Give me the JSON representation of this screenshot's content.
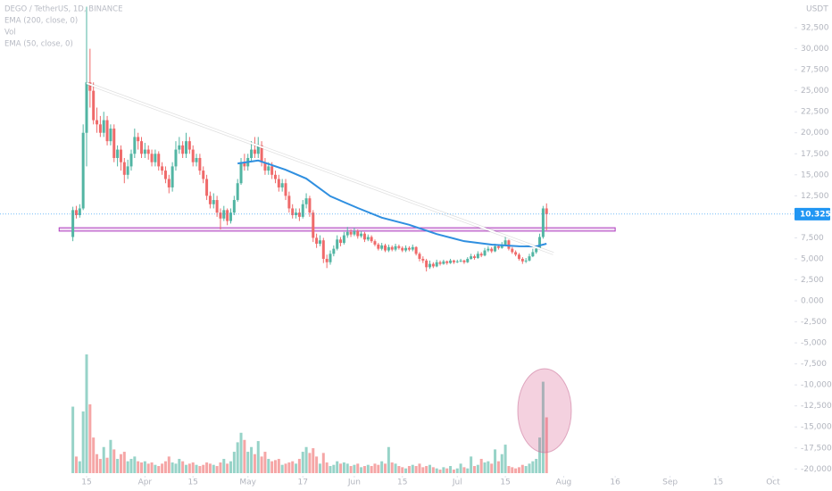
{
  "chart_data": {
    "type": "candlestick",
    "title": "DEGO / TetherUS, 1D, BINANCE",
    "indicators": [
      "EMA (200, close, 0)",
      "Vol",
      "EMA (50, close, 0)"
    ],
    "currency": "USDT",
    "up_color": "#52b5a3",
    "down_color": "#ef6a6a",
    "x": [
      "Mar 11",
      "Mar 12",
      "Mar 13",
      "Mar 14",
      "Mar 15",
      "Mar 16",
      "Mar 17",
      "Mar 18",
      "Mar 19",
      "Mar 20",
      "Mar 21",
      "Mar 22",
      "Mar 23",
      "Mar 24",
      "Mar 25",
      "Mar 26",
      "Mar 27",
      "Mar 28",
      "Mar 29",
      "Mar 30",
      "Mar 31",
      "Apr 1",
      "Apr 2",
      "Apr 3",
      "Apr 4",
      "Apr 5",
      "Apr 6",
      "Apr 7",
      "Apr 8",
      "Apr 9",
      "Apr 10",
      "Apr 11",
      "Apr 12",
      "Apr 13",
      "Apr 14",
      "Apr 15",
      "Apr 16",
      "Apr 17",
      "Apr 18",
      "Apr 19",
      "Apr 20",
      "Apr 21",
      "Apr 22",
      "Apr 23",
      "Apr 24",
      "Apr 25",
      "Apr 26",
      "Apr 27",
      "Apr 28",
      "Apr 29",
      "Apr 30",
      "May 1",
      "May 2",
      "May 3",
      "May 4",
      "May 5",
      "May 6",
      "May 7",
      "May 8",
      "May 9",
      "May 10",
      "May 11",
      "May 12",
      "May 13",
      "May 14",
      "May 15",
      "May 16",
      "May 17",
      "May 18",
      "May 19",
      "May 20",
      "May 21",
      "May 22",
      "May 23",
      "May 24",
      "May 25",
      "May 26",
      "May 27",
      "May 28",
      "May 29",
      "May 30",
      "May 31",
      "Jun 1",
      "Jun 2",
      "Jun 3",
      "Jun 4",
      "Jun 5",
      "Jun 6",
      "Jun 7",
      "Jun 8",
      "Jun 9",
      "Jun 10",
      "Jun 11",
      "Jun 12",
      "Jun 13",
      "Jun 14",
      "Jun 15",
      "Jun 16",
      "Jun 17",
      "Jun 18",
      "Jun 19",
      "Jun 20",
      "Jun 21",
      "Jun 22",
      "Jun 23",
      "Jun 24",
      "Jun 25",
      "Jun 26",
      "Jun 27",
      "Jun 28",
      "Jun 29",
      "Jun 30",
      "Jul 1",
      "Jul 2",
      "Jul 3",
      "Jul 4",
      "Jul 5",
      "Jul 6",
      "Jul 7",
      "Jul 8",
      "Jul 9",
      "Jul 10",
      "Jul 11",
      "Jul 12",
      "Jul 13",
      "Jul 14",
      "Jul 15",
      "Jul 16",
      "Jul 17",
      "Jul 18",
      "Jul 19",
      "Jul 20",
      "Jul 21",
      "Jul 22",
      "Jul 23",
      "Jul 24",
      "Jul 25",
      "Jul 26",
      "Jul 27"
    ],
    "open": [
      7600,
      10800,
      10200,
      11000,
      20000,
      26000,
      25000,
      21500,
      21000,
      20000,
      21500,
      19000,
      20500,
      17000,
      18000,
      16500,
      15000,
      16000,
      17500,
      19500,
      19000,
      17500,
      18000,
      17500,
      16500,
      17500,
      16000,
      15500,
      14500,
      13500,
      16000,
      18000,
      18500,
      17500,
      19000,
      18000,
      16500,
      17000,
      15500,
      14500,
      12500,
      11500,
      12000,
      10500,
      9800,
      10800,
      9500,
      10500,
      12000,
      14000,
      16500,
      16000,
      17000,
      18000,
      17500,
      18500,
      16500,
      15500,
      16000,
      15000,
      14500,
      13500,
      14000,
      12500,
      11000,
      10200,
      10500,
      10000,
      11500,
      12200,
      10500,
      7500,
      6800,
      7200,
      5000,
      4600,
      5600,
      6200,
      7300,
      6900,
      7800,
      8200,
      7900,
      8300,
      7700,
      8000,
      7300,
      7600,
      7100,
      6700,
      6200,
      6600,
      6000,
      6400,
      6100,
      6500,
      6300,
      6000,
      6300,
      6100,
      6400,
      5600,
      5000,
      4800,
      4000,
      4400,
      4100,
      4600,
      4400,
      4700,
      4500,
      4800,
      4600,
      4700,
      4800,
      4600,
      5000,
      5300,
      5100,
      5600,
      5400,
      6000,
      6200,
      5900,
      6500,
      6300,
      6700,
      7200,
      6200,
      5800,
      5500,
      5000,
      4700,
      4800,
      5300,
      5800,
      6200,
      7600,
      11000
    ],
    "high": [
      11200,
      11300,
      11500,
      21000,
      35000,
      30000,
      26000,
      23000,
      22000,
      22500,
      22000,
      21000,
      21000,
      18500,
      18500,
      17000,
      16800,
      18000,
      20500,
      20000,
      19500,
      18800,
      18500,
      18000,
      18000,
      17800,
      16500,
      16000,
      15000,
      16500,
      19000,
      19500,
      19000,
      20000,
      19500,
      18500,
      17500,
      17500,
      16000,
      15000,
      13000,
      12800,
      12500,
      11000,
      11300,
      11000,
      11000,
      12500,
      14500,
      17000,
      17500,
      17500,
      19000,
      19500,
      19500,
      19000,
      17000,
      16500,
      16500,
      15500,
      15000,
      14500,
      14500,
      13000,
      11500,
      11000,
      11000,
      12000,
      12800,
      12500,
      10800,
      8000,
      7800,
      7500,
      5500,
      6000,
      6600,
      7800,
      7600,
      8200,
      8800,
      8500,
      8700,
      8500,
      8300,
      8200,
      7900,
      7800,
      7300,
      6900,
      6900,
      6800,
      6700,
      6600,
      6800,
      6700,
      6500,
      6600,
      6500,
      6700,
      6500,
      5800,
      5300,
      5000,
      4800,
      4600,
      4900,
      4800,
      4900,
      4800,
      5000,
      4900,
      4900,
      5000,
      4900,
      5200,
      5600,
      5500,
      5900,
      5800,
      6300,
      6500,
      6400,
      6800,
      6700,
      7000,
      7800,
      7300,
      6400,
      6000,
      5700,
      5200,
      5100,
      5600,
      6200,
      6600,
      8000,
      11300,
      11600
    ],
    "low": [
      7100,
      9800,
      9900,
      10800,
      16000,
      23000,
      21000,
      20000,
      19500,
      19500,
      18500,
      18500,
      16500,
      16000,
      15500,
      14000,
      14500,
      15500,
      17000,
      18000,
      17000,
      17000,
      16800,
      16000,
      16000,
      15500,
      15000,
      14000,
      12800,
      13000,
      15500,
      17500,
      17000,
      17000,
      17500,
      16000,
      16000,
      15000,
      14000,
      12000,
      11000,
      11000,
      10000,
      8500,
      9500,
      9000,
      9200,
      10200,
      11800,
      13800,
      15500,
      15500,
      16500,
      17000,
      17000,
      16000,
      15000,
      15000,
      14500,
      14000,
      13000,
      13000,
      12000,
      10500,
      9800,
      9800,
      9500,
      9800,
      11000,
      10000,
      7000,
      6300,
      6500,
      4500,
      3900,
      4300,
      5300,
      6000,
      6500,
      6700,
      7500,
      7600,
      7700,
      7400,
      7500,
      7000,
      7100,
      6900,
      6500,
      6000,
      6000,
      5800,
      5800,
      5900,
      5900,
      6100,
      5800,
      5800,
      5900,
      5900,
      5400,
      4700,
      4500,
      3500,
      3800,
      3900,
      4000,
      4200,
      4300,
      4300,
      4400,
      4400,
      4500,
      4600,
      4400,
      4500,
      4900,
      4900,
      5000,
      5200,
      5300,
      5800,
      5700,
      5800,
      6100,
      6200,
      6600,
      6000,
      5600,
      5300,
      4800,
      4400,
      4500,
      4700,
      5200,
      5600,
      6100,
      7400,
      8400
    ],
    "close": [
      10800,
      10200,
      11000,
      20000,
      26000,
      25000,
      21500,
      21000,
      20000,
      21500,
      19000,
      20500,
      17000,
      18000,
      16500,
      15000,
      16000,
      17500,
      19500,
      19000,
      17500,
      18000,
      17500,
      16500,
      17500,
      16000,
      15500,
      14500,
      13500,
      16000,
      18000,
      18500,
      17500,
      19000,
      18000,
      16500,
      17000,
      15500,
      14500,
      12500,
      11500,
      12000,
      10500,
      9800,
      10800,
      9500,
      10500,
      12000,
      14000,
      16500,
      16000,
      17000,
      18000,
      17500,
      18500,
      16500,
      15500,
      16000,
      15000,
      14500,
      13500,
      14000,
      12500,
      11000,
      10200,
      10500,
      10000,
      11500,
      12200,
      10500,
      7500,
      6800,
      7200,
      5000,
      4600,
      5600,
      6200,
      7300,
      6900,
      7800,
      8200,
      7900,
      8300,
      7700,
      8000,
      7300,
      7600,
      7100,
      6700,
      6200,
      6600,
      6000,
      6400,
      6100,
      6500,
      6300,
      6000,
      6300,
      6100,
      6400,
      5600,
      5000,
      4800,
      4000,
      4400,
      4100,
      4600,
      4400,
      4700,
      4500,
      4800,
      4600,
      4700,
      4800,
      4600,
      5000,
      5300,
      5100,
      5600,
      5400,
      6000,
      6200,
      5900,
      6500,
      6300,
      6700,
      7200,
      6200,
      5800,
      5500,
      5000,
      4700,
      4800,
      5300,
      5800,
      6200,
      7600,
      11000,
      10325
    ],
    "volume": [
      56,
      14,
      10,
      52,
      100,
      58,
      30,
      16,
      12,
      22,
      13,
      28,
      20,
      12,
      16,
      18,
      10,
      12,
      14,
      10,
      9,
      10,
      8,
      9,
      7,
      6,
      8,
      10,
      14,
      9,
      8,
      12,
      10,
      7,
      8,
      9,
      7,
      6,
      7,
      9,
      8,
      7,
      6,
      9,
      12,
      8,
      10,
      18,
      26,
      34,
      28,
      18,
      22,
      16,
      27,
      14,
      18,
      12,
      10,
      11,
      12,
      7,
      8,
      9,
      10,
      8,
      12,
      18,
      22,
      17,
      21,
      14,
      8,
      17,
      9,
      6,
      7,
      10,
      8,
      9,
      8,
      6,
      7,
      8,
      5,
      6,
      7,
      6,
      8,
      7,
      10,
      8,
      22,
      9,
      8,
      6,
      5,
      4,
      6,
      7,
      6,
      8,
      5,
      6,
      7,
      5,
      4,
      3,
      5,
      4,
      6,
      3,
      4,
      8,
      5,
      4,
      14,
      6,
      7,
      12,
      9,
      10,
      8,
      20,
      10,
      16,
      24,
      6,
      5,
      4,
      5,
      7,
      6,
      8,
      10,
      12,
      30,
      77,
      47
    ],
    "volume_ylim": [
      0,
      100
    ],
    "ylim": [
      -20500,
      35800
    ],
    "yticks": [
      {
        "value": 32500,
        "label": "32,500"
      },
      {
        "value": 30000,
        "label": "30,000"
      },
      {
        "value": 27500,
        "label": "27,500"
      },
      {
        "value": 25000,
        "label": "25,000"
      },
      {
        "value": 22500,
        "label": "22,500"
      },
      {
        "value": 20000,
        "label": "20,000"
      },
      {
        "value": 17500,
        "label": "17,500"
      },
      {
        "value": 15000,
        "label": "15,000"
      },
      {
        "value": 12500,
        "label": "12,500"
      },
      {
        "value": 10000,
        "label": "10,000"
      },
      {
        "value": 7500,
        "label": "7,500"
      },
      {
        "value": 5000,
        "label": "5,000"
      },
      {
        "value": 2500,
        "label": "2,500"
      },
      {
        "value": 0,
        "label": "0.000"
      },
      {
        "value": -2500,
        "label": "-2,500"
      },
      {
        "value": -5000,
        "label": "-5,000"
      },
      {
        "value": -7500,
        "label": "-7,500"
      },
      {
        "value": -10000,
        "label": "-10,000"
      },
      {
        "value": -12500,
        "label": "-12,500"
      },
      {
        "value": -15000,
        "label": "-15,000"
      },
      {
        "value": -17500,
        "label": "-17,500"
      },
      {
        "value": -20000,
        "label": "-20,000"
      }
    ],
    "xticks": [
      {
        "value": "Mar 15",
        "label": "15"
      },
      {
        "value": "Apr 1",
        "label": "Apr"
      },
      {
        "value": "Apr 15",
        "label": "15"
      },
      {
        "value": "May 1",
        "label": "May"
      },
      {
        "value": "May 17",
        "label": "17"
      },
      {
        "value": "Jun 1",
        "label": "Jun"
      },
      {
        "value": "Jun 15",
        "label": "15"
      },
      {
        "value": "Jul 1",
        "label": "Jul"
      },
      {
        "value": "Jul 15",
        "label": "15"
      },
      {
        "value": "Aug 1",
        "label": "Aug"
      },
      {
        "value": "Aug 16",
        "label": "16"
      },
      {
        "value": "Sep 1",
        "label": "Sep"
      },
      {
        "value": "Sep 15",
        "label": "15"
      },
      {
        "value": "Oct 1",
        "label": "Oct"
      }
    ],
    "grid": false,
    "ema": {
      "color": "#2f8fe0",
      "x": [
        "Apr 28",
        "May 4",
        "May 12",
        "May 18",
        "May 25",
        "Jun 2",
        "Jun 9",
        "Jun 17",
        "Jun 25",
        "Jul 3",
        "Jul 11",
        "Jul 19",
        "Jul 24",
        "Jul 27"
      ],
      "values": [
        16350,
        16700,
        15600,
        14550,
        12450,
        11050,
        9900,
        9050,
        7950,
        7100,
        6700,
        6500,
        6480,
        6800
      ]
    },
    "trendline": {
      "color": "#ffffff",
      "x": [
        "Mar 15",
        "Jul 29"
      ],
      "values": [
        25900,
        5630
      ]
    },
    "band": {
      "color": "#b03bbf",
      "x": [
        "Mar 7",
        "Aug 16"
      ],
      "range": [
        8300,
        8700
      ]
    },
    "last_price": {
      "value": 10325,
      "label": "10.325",
      "color": "#2196f3"
    }
  }
}
